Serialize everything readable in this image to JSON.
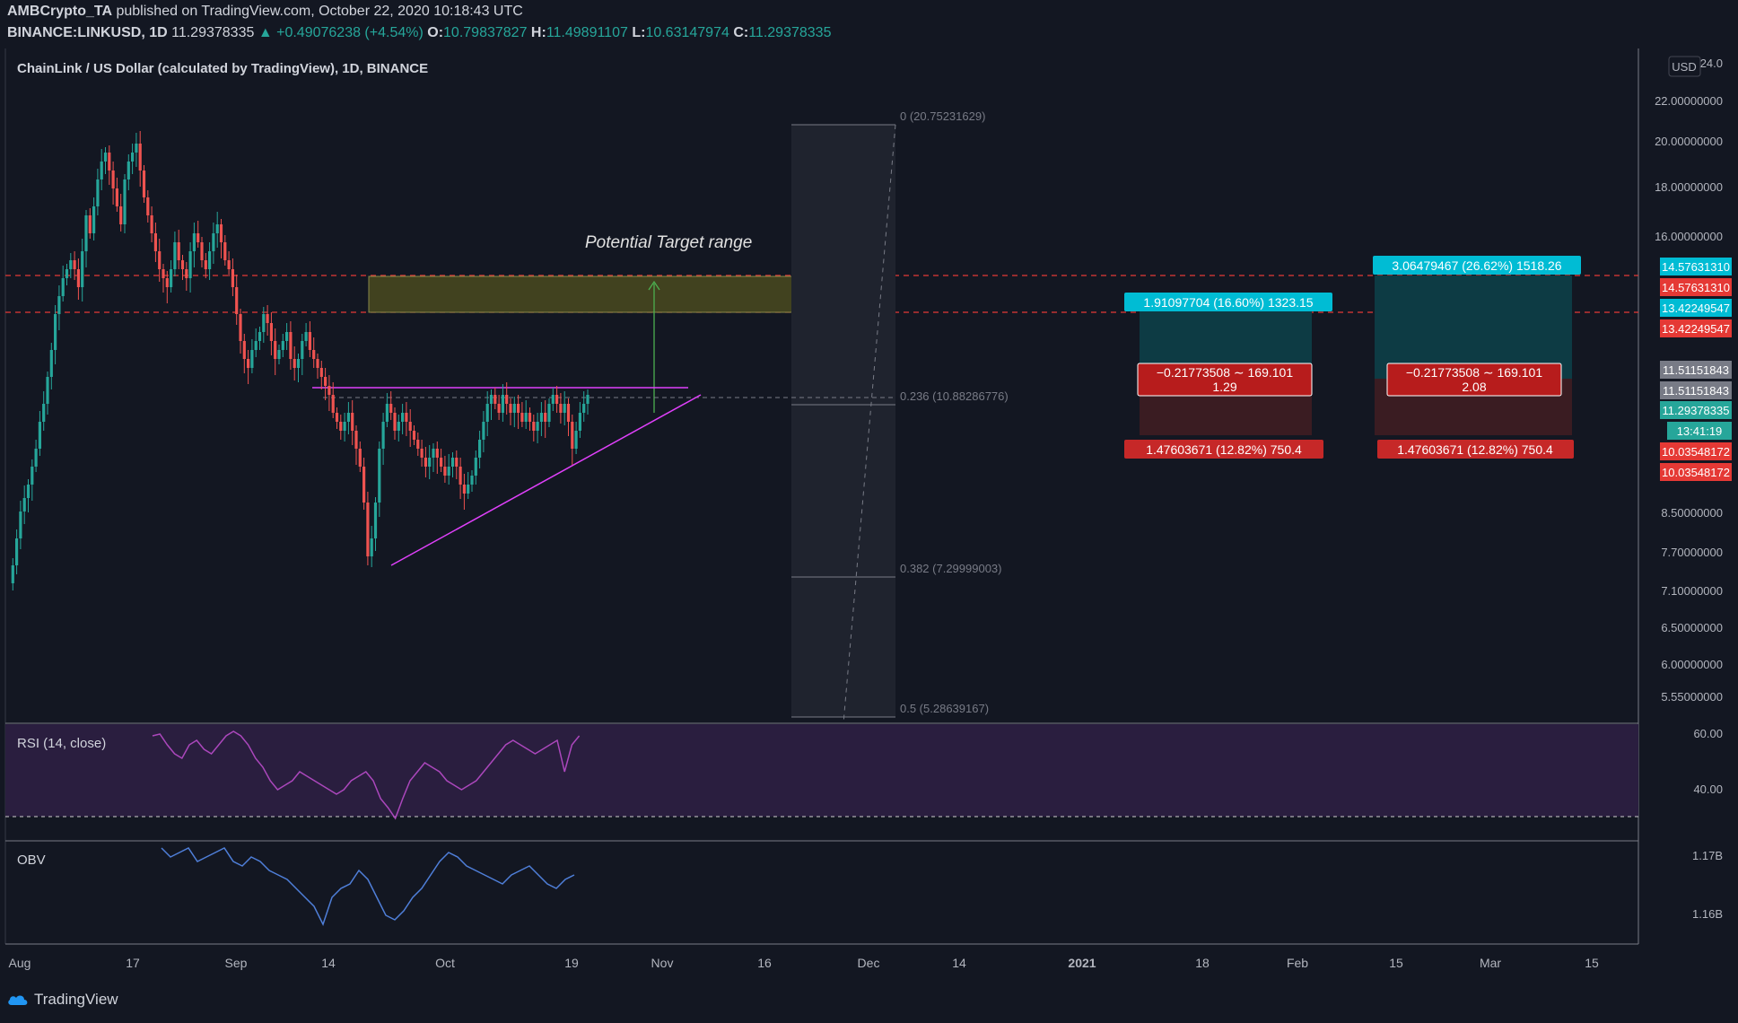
{
  "header": {
    "author": "AMBCrypto_TA",
    "published_text": "published on TradingView.com, October 22, 2020 10:18:43 UTC",
    "symbol": "BINANCE:LINKUSD, 1D",
    "last": "11.29378335",
    "change": "▲ +0.49076238 (+4.54%)",
    "o_label": "O:",
    "o": "10.79837827",
    "h_label": "H:",
    "h": "11.49891107",
    "l_label": "L:",
    "l": "10.63147974",
    "c_label": "C:",
    "c": "11.29378335"
  },
  "legend": {
    "title": "ChainLink / US Dollar (calculated by TradingView), 1D, BINANCE"
  },
  "currency_button": "USD",
  "annotation": "Potential Target range",
  "fib": {
    "f0": "0 (20.75231629)",
    "f236": "0.236 (10.88286776)",
    "f382": "0.382 (7.29999003)",
    "f5": "0.5 (5.28639167)"
  },
  "positions": [
    {
      "target_label": "1.91097704 (16.60%) 1323.15",
      "mid_label_1": "−0.21773508 ∼ 169.101",
      "mid_label_2": "1.29",
      "stop_label": "1.47603671 (12.82%) 750.4"
    },
    {
      "target_label": "3.06479467 (26.62%) 1518.26",
      "mid_label_1": "−0.21773508 ∼ 169.101",
      "mid_label_2": "2.08",
      "stop_label": "1.47603671 (12.82%) 750.4"
    }
  ],
  "price_axis": {
    "ticks": [
      "24.0",
      "22.00000000",
      "20.00000000",
      "18.00000000",
      "16.00000000",
      "8.50000000",
      "7.70000000",
      "7.10000000",
      "6.50000000",
      "6.00000000",
      "5.55000000"
    ],
    "badges": [
      {
        "text": "14.57631310",
        "color": "#00bcd4"
      },
      {
        "text": "14.57631310",
        "color": "#e53935"
      },
      {
        "text": "13.42249547",
        "color": "#00bcd4"
      },
      {
        "text": "13.42249547",
        "color": "#e53935"
      },
      {
        "text": "11.51151843",
        "color": "#787b86"
      },
      {
        "text": "11.51151843",
        "color": "#787b86"
      },
      {
        "text": "11.29378335",
        "color": "#26a69a"
      },
      {
        "text": "13:41:19",
        "color": "#26a69a"
      },
      {
        "text": "10.03548172",
        "color": "#e53935"
      },
      {
        "text": "10.03548172",
        "color": "#e53935"
      }
    ]
  },
  "rsi": {
    "label": "RSI (14, close)",
    "ticks": [
      "60.00",
      "40.00"
    ]
  },
  "obv": {
    "label": "OBV",
    "ticks": [
      "1.17B",
      "1.16B"
    ]
  },
  "time_axis": [
    "Aug",
    "17",
    "Sep",
    "14",
    "Oct",
    "19",
    "Nov",
    "16",
    "Dec",
    "14",
    "2021",
    "18",
    "Feb",
    "15",
    "Mar",
    "15"
  ],
  "footer": {
    "brand": "TradingView"
  },
  "colors": {
    "up": "#26a69a",
    "down": "#ef5350",
    "bg": "#131722",
    "pattern": "#e040fb",
    "rsi": "#ab47bc",
    "obv": "#2962ff",
    "target_box": "#00bcd4",
    "stop_box": "#e53935"
  }
}
